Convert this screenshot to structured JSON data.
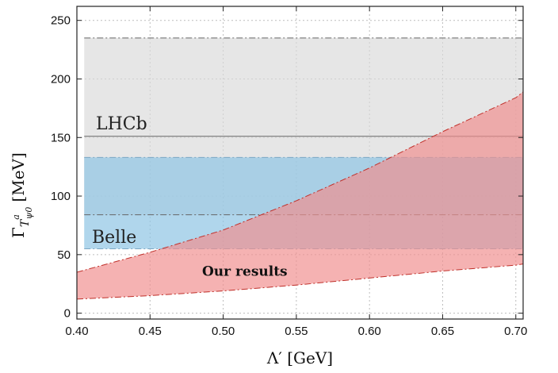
{
  "chart_data": {
    "type": "area",
    "xlabel": "Λ′ [GeV]",
    "ylabel_main": "Γ",
    "ylabel_sub": "T",
    "ylabel_sup": "a",
    "ylabel_subsub": "ψ0",
    "ylabel_unit": "[MeV]",
    "xlim": [
      0.4,
      0.705
    ],
    "ylim": [
      -5,
      262
    ],
    "x_ticks": [
      "0.40",
      "0.45",
      "0.50",
      "0.55",
      "0.60",
      "0.65",
      "0.70"
    ],
    "y_ticks": [
      "0",
      "50",
      "100",
      "150",
      "200",
      "250"
    ],
    "grid": true,
    "bands": [
      {
        "label": "LHCb",
        "lower": 84,
        "upper": 235,
        "central": 151,
        "color": "#d9d9d9"
      },
      {
        "label": "Belle",
        "lower": 55,
        "upper": 133,
        "color": "#8fc4e4"
      }
    ],
    "our_results": {
      "label": "Our results",
      "color": "#f08e8e",
      "x": [
        0.4,
        0.45,
        0.5,
        0.55,
        0.6,
        0.65,
        0.7,
        0.705
      ],
      "upper": [
        35,
        52,
        71,
        96,
        124,
        155,
        184,
        189
      ],
      "lower": [
        12,
        15,
        19,
        24,
        30,
        36,
        41,
        42
      ]
    }
  }
}
